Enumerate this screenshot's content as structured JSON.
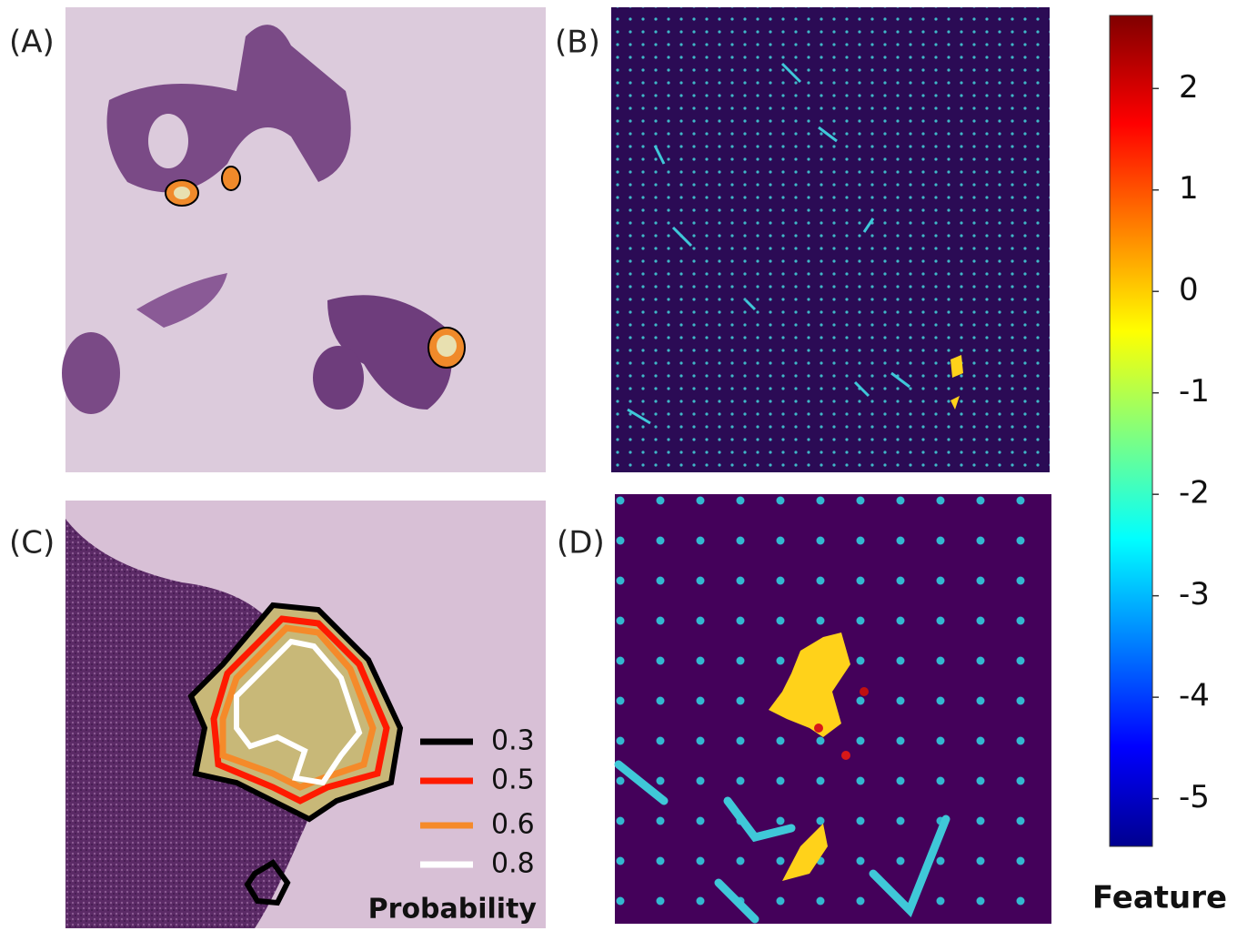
{
  "panels": [
    "(A)",
    "(B)",
    "(C)",
    "(D)"
  ],
  "legend": {
    "title": "Probability",
    "entries": [
      {
        "value": 0.3,
        "color": "#000000"
      },
      {
        "value": 0.5,
        "color": "#ff1a00"
      },
      {
        "value": 0.6,
        "color": "#f58a2a"
      },
      {
        "value": 0.8,
        "color": "#ffffff"
      }
    ]
  },
  "colorbar": {
    "label": "Feature",
    "lim": [
      -5.47,
      2.72
    ],
    "ticks": [
      2,
      1,
      0,
      -1,
      -2,
      -3,
      -4,
      -5
    ]
  }
}
